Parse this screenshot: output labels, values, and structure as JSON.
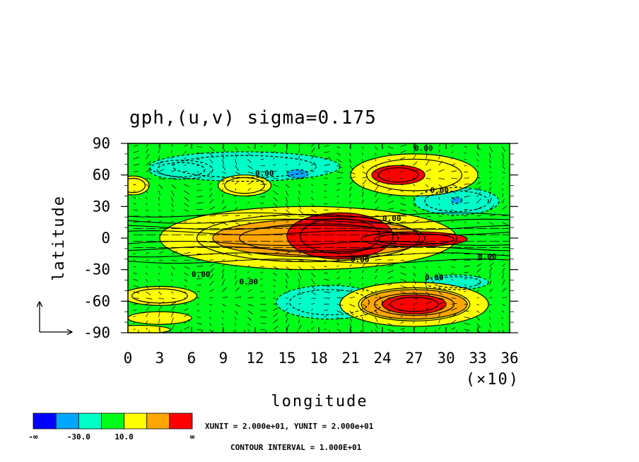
{
  "chart_data": {
    "type": "heatmap",
    "title": "gph,(u,v)  sigma=0.175",
    "xlabel": "longitude",
    "ylabel": "latitude",
    "x_multiplier_label": "(×10)",
    "xlim": [
      0,
      36
    ],
    "ylim": [
      -90,
      90
    ],
    "x_ticks": [
      0,
      3,
      6,
      9,
      12,
      15,
      18,
      21,
      24,
      27,
      30,
      33,
      36
    ],
    "y_ticks": [
      90,
      60,
      30,
      0,
      -30,
      -60,
      -90
    ],
    "colorbar": {
      "colors": [
        "#0000ff",
        "#00a6ff",
        "#00ffc8",
        "#00ff19",
        "#ffff00",
        "#ffa600",
        "#ff0000"
      ],
      "labels": [
        "-∞",
        "-30.0",
        "10.0",
        "∞"
      ]
    },
    "contour_labels": [
      "0.00",
      "0.00",
      "0.00",
      "0.00",
      "0.00",
      "0.00",
      "0.00",
      "0.00",
      "0.00"
    ],
    "unit_text": "XUNIT = 2.000e+01, YUNIT = 2.000e+01",
    "interval_text": "CONTOUR INTERVAL = 1.000E+01",
    "regions": [
      {
        "level": 2,
        "lon": 11,
        "lat": 68,
        "rx": 9,
        "ry": 14
      },
      {
        "level": 2,
        "lon": 5,
        "lat": 65,
        "rx": 3,
        "ry": 9
      },
      {
        "level": 2,
        "lon": 31,
        "lat": 35,
        "rx": 4,
        "ry": 13
      },
      {
        "level": 2,
        "lon": 19,
        "lat": -61,
        "rx": 5,
        "ry": 16
      },
      {
        "level": 2,
        "lon": 31,
        "lat": -42,
        "rx": 3,
        "ry": 7
      },
      {
        "level": 1,
        "lon": 16,
        "lat": 61,
        "rx": 1,
        "ry": 4
      },
      {
        "level": 1,
        "lon": 31,
        "lat": 36,
        "rx": 0.5,
        "ry": 3
      },
      {
        "level": 4,
        "lon": 17,
        "lat": 0,
        "rx": 14,
        "ry": 30
      },
      {
        "level": 4,
        "lon": 27,
        "lat": 60,
        "rx": 6,
        "ry": 20
      },
      {
        "level": 4,
        "lon": 27,
        "lat": -63,
        "rx": 7,
        "ry": 21
      },
      {
        "level": 4,
        "lon": 11,
        "lat": 50,
        "rx": 2.5,
        "ry": 10
      },
      {
        "level": 4,
        "lon": 0.5,
        "lat": 50,
        "rx": 1.5,
        "ry": 9
      },
      {
        "level": 4,
        "lon": 3,
        "lat": -55,
        "rx": 3.5,
        "ry": 9
      },
      {
        "level": 4,
        "lon": 3,
        "lat": -76,
        "rx": 3,
        "ry": 6
      },
      {
        "level": 4,
        "lon": 1,
        "lat": -87,
        "rx": 3,
        "ry": 4
      },
      {
        "level": 5,
        "lon": 18,
        "lat": 0,
        "rx": 10,
        "ry": 18
      },
      {
        "level": 5,
        "lon": 27,
        "lat": -63,
        "rx": 5,
        "ry": 14
      },
      {
        "level": 6,
        "lon": 20,
        "lat": 2,
        "rx": 5,
        "ry": 22
      },
      {
        "level": 6,
        "lon": 27,
        "lat": -1,
        "rx": 5,
        "ry": 7
      },
      {
        "level": 6,
        "lon": 25.5,
        "lat": 60,
        "rx": 2.5,
        "ry": 9
      },
      {
        "level": 6,
        "lon": 27,
        "lat": -63,
        "rx": 3,
        "ry": 9
      }
    ]
  }
}
